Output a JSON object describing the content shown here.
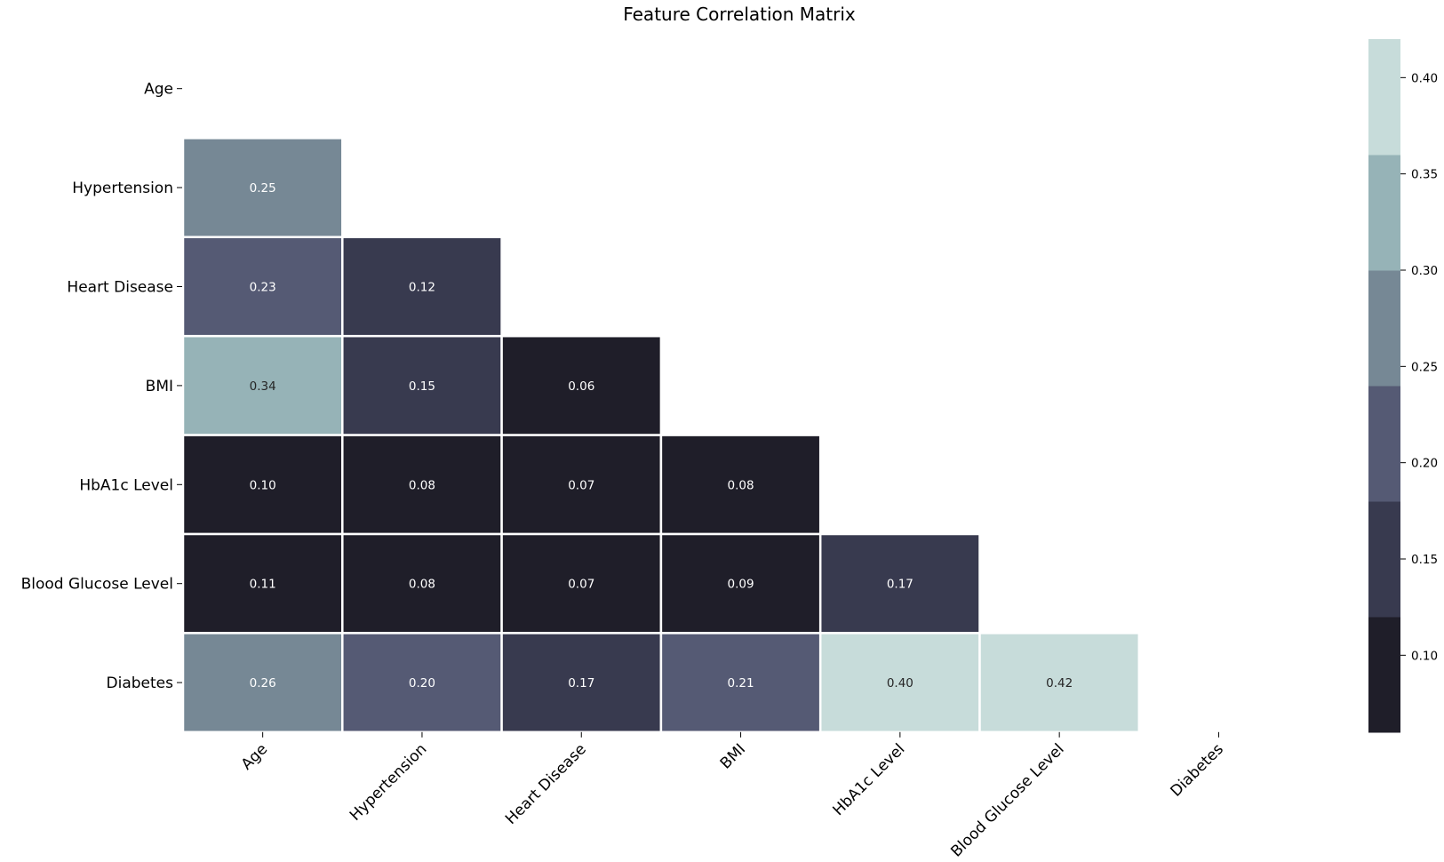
{
  "chart_data": {
    "type": "heatmap",
    "title": "Feature Correlation Matrix",
    "labels": [
      "Age",
      "Hypertension",
      "Heart Disease",
      "BMI",
      "HbA1c Level",
      "Blood Glucose Level",
      "Diabetes"
    ],
    "mask": "upper-triangle-including-diagonal",
    "matrix": [
      [
        null,
        null,
        null,
        null,
        null,
        null,
        null
      ],
      [
        0.25,
        null,
        null,
        null,
        null,
        null,
        null
      ],
      [
        0.23,
        0.12,
        null,
        null,
        null,
        null,
        null
      ],
      [
        0.34,
        0.15,
        0.06,
        null,
        null,
        null,
        null
      ],
      [
        0.1,
        0.08,
        0.07,
        0.08,
        null,
        null,
        null
      ],
      [
        0.11,
        0.08,
        0.07,
        0.09,
        0.17,
        null,
        null
      ],
      [
        0.26,
        0.2,
        0.17,
        0.21,
        0.4,
        0.42,
        null
      ]
    ],
    "value_labels": [
      [
        null,
        null,
        null,
        null,
        null,
        null,
        null
      ],
      [
        "0.25",
        null,
        null,
        null,
        null,
        null,
        null
      ],
      [
        "0.23",
        "0.12",
        null,
        null,
        null,
        null,
        null
      ],
      [
        "0.34",
        "0.15",
        "0.06",
        null,
        null,
        null,
        null
      ],
      [
        "0.10",
        "0.08",
        "0.07",
        "0.08",
        null,
        null,
        null
      ],
      [
        "0.11",
        "0.08",
        "0.07",
        "0.09",
        "0.17",
        null,
        null
      ],
      [
        "0.26",
        "0.20",
        "0.17",
        "0.21",
        "0.40",
        "0.42",
        null
      ]
    ],
    "colorbar": {
      "range": [
        0.06,
        0.42
      ],
      "ticks": [
        "0.10",
        "0.15",
        "0.20",
        "0.25",
        "0.30",
        "0.35",
        "0.40"
      ],
      "tick_values": [
        0.1,
        0.15,
        0.2,
        0.25,
        0.3,
        0.35,
        0.4
      ],
      "discrete_colors": [
        "#1f1e29",
        "#383a4f",
        "#555a74",
        "#768895",
        "#96b3b7",
        "#c7dcda"
      ]
    }
  }
}
